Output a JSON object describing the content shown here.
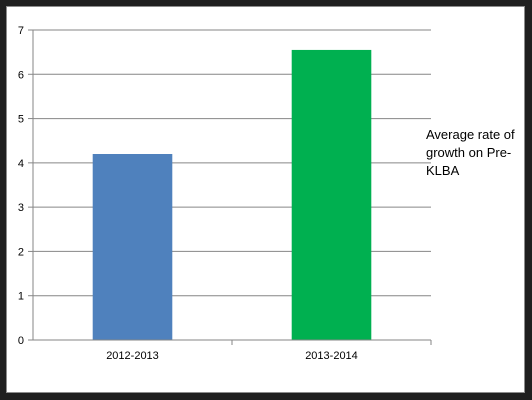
{
  "chart_data": {
    "type": "bar",
    "categories": [
      "2012-2013",
      "2013-2014"
    ],
    "series": [
      {
        "name": "Average rate of growth on Pre-KLBA",
        "values": [
          4.2,
          6.55
        ]
      }
    ],
    "colors": [
      "#4f81bd",
      "#00b050"
    ],
    "ylim": [
      0,
      7
    ],
    "yticks": [
      "0",
      "1",
      "2",
      "3",
      "4",
      "5",
      "6",
      "7"
    ],
    "grid": true,
    "legend_position": "right"
  }
}
